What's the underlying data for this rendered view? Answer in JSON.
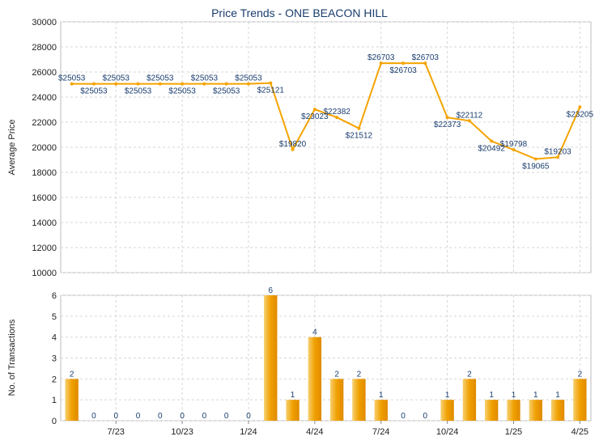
{
  "chart_data": [
    {
      "type": "line",
      "title": "Price Trends - ONE BEACON HILL",
      "ylabel": "Average Price",
      "ylim": [
        10000,
        30000
      ],
      "yticks": [
        10000,
        12000,
        14000,
        16000,
        18000,
        20000,
        22000,
        24000,
        26000,
        28000,
        30000
      ],
      "grid": true,
      "series": [
        {
          "color": "#f5a300",
          "values": [
            25053,
            25053,
            25053,
            25053,
            25053,
            25053,
            25053,
            25053,
            25053,
            25121,
            19820,
            23023,
            22382,
            21512,
            26703,
            26703,
            26703,
            22373,
            22112,
            20492,
            19798,
            19065,
            19203,
            23205
          ],
          "value_labels": [
            "$25053",
            "$25053",
            "$25053",
            "$25053",
            "$25053",
            "$25053",
            "$25053",
            "$25053",
            "$25053",
            "$25121",
            "$19820",
            "$23023",
            "$22382",
            "$21512",
            "$26703",
            "$26703",
            "$26703",
            "$22373",
            "$22112",
            "$20492",
            "$19798",
            "$19065",
            "$19203",
            "$23205"
          ]
        }
      ]
    },
    {
      "type": "bar",
      "ylabel": "No. of Transactions",
      "ylim": [
        0,
        6
      ],
      "yticks": [
        0,
        1,
        2,
        3,
        4,
        5,
        6
      ],
      "grid": true,
      "color": "#f0a000",
      "categories": [
        null,
        null,
        "7/23",
        null,
        null,
        "10/23",
        null,
        null,
        "1/24",
        null,
        null,
        "4/24",
        null,
        null,
        "7/24",
        null,
        null,
        "10/24",
        null,
        null,
        "1/25",
        null,
        null,
        "4/25"
      ],
      "values": [
        2,
        0,
        0,
        0,
        0,
        0,
        0,
        0,
        0,
        6,
        1,
        4,
        2,
        2,
        1,
        0,
        0,
        1,
        2,
        1,
        1,
        1,
        1,
        2
      ]
    }
  ]
}
